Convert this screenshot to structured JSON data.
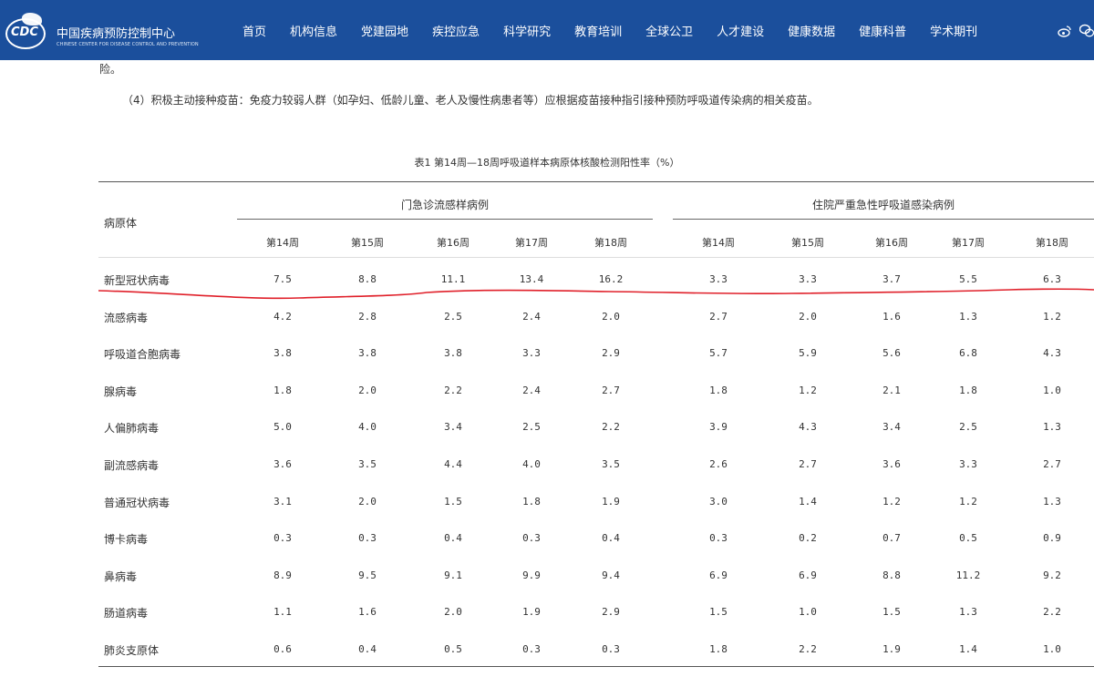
{
  "header": {
    "logo_text": "CDC",
    "site_title": "中国疾病预防控制中心",
    "site_subtitle": "CHINESE CENTER FOR DISEASE CONTROL AND PREVENTION",
    "nav": [
      "首页",
      "机构信息",
      "党建园地",
      "疾控应急",
      "科学研究",
      "教育培训",
      "全球公卫",
      "人才建设",
      "健康数据",
      "健康科普",
      "学术期刊"
    ],
    "icons": [
      "weibo-icon",
      "wechat-icon"
    ]
  },
  "body": {
    "line1": "险。",
    "line2": "（4）积极主动接种疫苗：免疫力较弱人群（如孕妇、低龄儿童、老人及慢性病患者等）应根据疫苗接种指引接种预防呼吸道传染病的相关疫苗。"
  },
  "table": {
    "caption": "表1  第14周—18周呼吸道样本病原体核酸检测阳性率（%）",
    "pathogen_header": "病原体",
    "group1": "门急诊流感样病例",
    "group2": "住院严重急性呼吸道感染病例",
    "weeks": [
      "第14周",
      "第15周",
      "第16周",
      "第17周",
      "第18周"
    ],
    "rows": [
      {
        "name": "新型冠状病毒",
        "g1": [
          "7.5",
          "8.8",
          "11.1",
          "13.4",
          "16.2"
        ],
        "g2": [
          "3.3",
          "3.3",
          "3.7",
          "5.5",
          "6.3"
        ]
      },
      {
        "name": "流感病毒",
        "g1": [
          "4.2",
          "2.8",
          "2.5",
          "2.4",
          "2.0"
        ],
        "g2": [
          "2.7",
          "2.0",
          "1.6",
          "1.3",
          "1.2"
        ]
      },
      {
        "name": "呼吸道合胞病毒",
        "g1": [
          "3.8",
          "3.8",
          "3.8",
          "3.3",
          "2.9"
        ],
        "g2": [
          "5.7",
          "5.9",
          "5.6",
          "6.8",
          "4.3"
        ]
      },
      {
        "name": "腺病毒",
        "g1": [
          "1.8",
          "2.0",
          "2.2",
          "2.4",
          "2.7"
        ],
        "g2": [
          "1.8",
          "1.2",
          "2.1",
          "1.8",
          "1.0"
        ]
      },
      {
        "name": "人偏肺病毒",
        "g1": [
          "5.0",
          "4.0",
          "3.4",
          "2.5",
          "2.2"
        ],
        "g2": [
          "3.9",
          "4.3",
          "3.4",
          "2.5",
          "1.3"
        ]
      },
      {
        "name": "副流感病毒",
        "g1": [
          "3.6",
          "3.5",
          "4.4",
          "4.0",
          "3.5"
        ],
        "g2": [
          "2.6",
          "2.7",
          "3.6",
          "3.3",
          "2.7"
        ]
      },
      {
        "name": "普通冠状病毒",
        "g1": [
          "3.1",
          "2.0",
          "1.5",
          "1.8",
          "1.9"
        ],
        "g2": [
          "3.0",
          "1.4",
          "1.2",
          "1.2",
          "1.3"
        ]
      },
      {
        "name": "博卡病毒",
        "g1": [
          "0.3",
          "0.3",
          "0.4",
          "0.3",
          "0.4"
        ],
        "g2": [
          "0.3",
          "0.2",
          "0.7",
          "0.5",
          "0.9"
        ]
      },
      {
        "name": "鼻病毒",
        "g1": [
          "8.9",
          "9.5",
          "9.1",
          "9.9",
          "9.4"
        ],
        "g2": [
          "6.9",
          "6.9",
          "8.8",
          "11.2",
          "9.2"
        ]
      },
      {
        "name": "肠道病毒",
        "g1": [
          "1.1",
          "1.6",
          "2.0",
          "1.9",
          "2.9"
        ],
        "g2": [
          "1.5",
          "1.0",
          "1.5",
          "1.3",
          "2.2"
        ]
      },
      {
        "name": "肺炎支原体",
        "g1": [
          "0.6",
          "0.4",
          "0.5",
          "0.3",
          "0.3"
        ],
        "g2": [
          "1.8",
          "2.2",
          "1.9",
          "1.4",
          "1.0"
        ]
      }
    ]
  },
  "colors": {
    "header_bg": "#1b4f9c",
    "annotation": "#e0202a"
  }
}
